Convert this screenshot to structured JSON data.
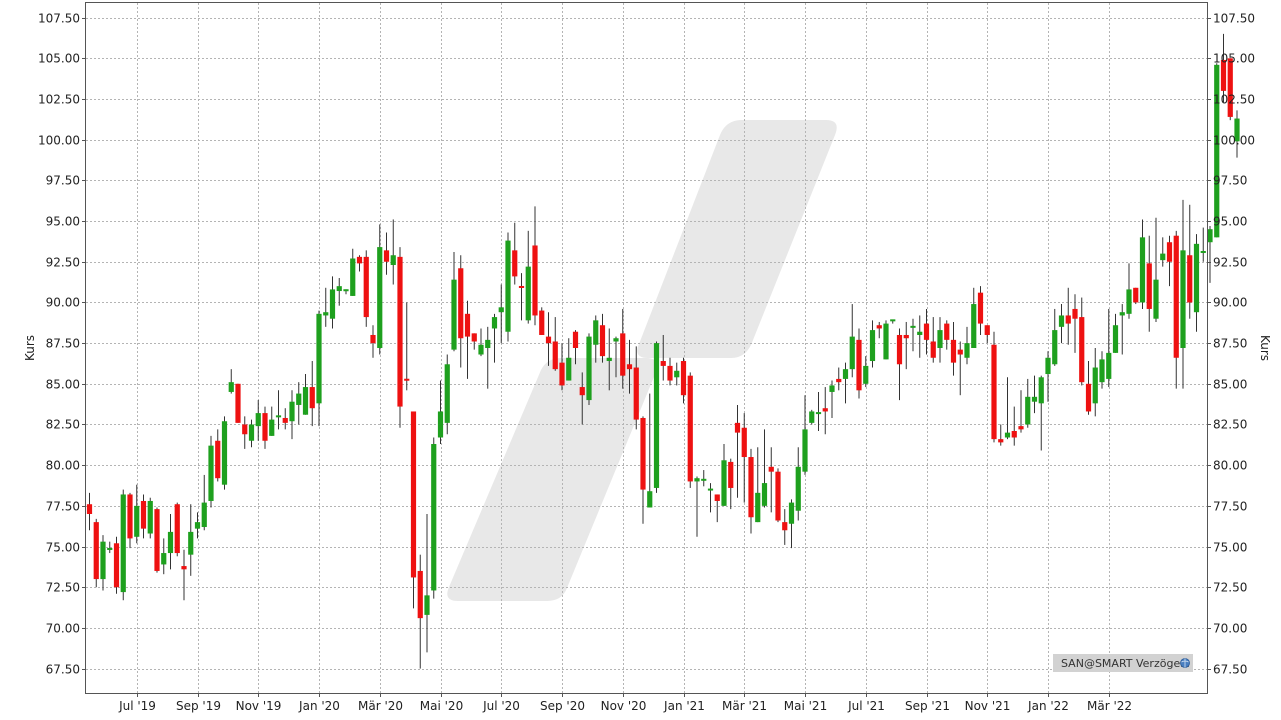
{
  "source_badge": {
    "label": "SAN@SMART Verzögert",
    "icon": "globe-icon"
  },
  "chart_data": {
    "type": "candlestick",
    "title": "",
    "ylabel_left": "Kurs",
    "ylabel_right": "Kurs",
    "ylim": [
      66.0,
      108.4
    ],
    "y_ticks": [
      "67.50",
      "70.00",
      "72.50",
      "75.00",
      "77.50",
      "80.00",
      "82.50",
      "85.00",
      "87.50",
      "90.00",
      "92.50",
      "95.00",
      "97.50",
      "100.00",
      "102.50",
      "105.00",
      "107.50"
    ],
    "x_ticks": [
      {
        "label": "Jul '19",
        "week": 7
      },
      {
        "label": "Sep '19",
        "week": 16
      },
      {
        "label": "Nov '19",
        "week": 25
      },
      {
        "label": "Jan '20",
        "week": 34
      },
      {
        "label": "Mär '20",
        "week": 43
      },
      {
        "label": "Mai '20",
        "week": 52
      },
      {
        "label": "Jul '20",
        "week": 61
      },
      {
        "label": "Sep '20",
        "week": 70
      },
      {
        "label": "Nov '20",
        "week": 79
      },
      {
        "label": "Jan '21",
        "week": 88
      },
      {
        "label": "Mär '21",
        "week": 97
      },
      {
        "label": "Mai '21",
        "week": 106
      },
      {
        "label": "Jul '21",
        "week": 115
      },
      {
        "label": "Sep '21",
        "week": 124
      },
      {
        "label": "Nov '21",
        "week": 133
      },
      {
        "label": "Jan '22",
        "week": 142
      },
      {
        "label": "Mär '22",
        "week": 151
      }
    ],
    "grid": true,
    "colors": {
      "up": "#1ea01e",
      "down": "#ee1111",
      "wick": "#333333",
      "grid": "#b4b4b4",
      "watermark": "#e8e8e8"
    },
    "candles": [
      [
        77.6,
        77.0,
        78.3,
        76.0
      ],
      [
        76.5,
        73.0,
        76.7,
        72.5
      ],
      [
        73.0,
        75.3,
        75.7,
        72.3
      ],
      [
        74.8,
        74.9,
        75.3,
        74.6
      ],
      [
        75.2,
        72.5,
        75.6,
        72.1
      ],
      [
        72.2,
        78.2,
        78.5,
        71.7
      ],
      [
        78.2,
        75.5,
        78.3,
        74.9
      ],
      [
        75.6,
        77.5,
        78.8,
        75.2
      ],
      [
        77.8,
        76.1,
        78.2,
        75.5
      ],
      [
        75.8,
        77.8,
        78.0,
        75.5
      ],
      [
        77.3,
        73.5,
        77.4,
        73.4
      ],
      [
        73.9,
        74.6,
        75.5,
        73.3
      ],
      [
        74.6,
        75.9,
        77.0,
        73.6
      ],
      [
        77.6,
        74.6,
        77.7,
        74.4
      ],
      [
        73.8,
        73.6,
        74.8,
        71.7
      ],
      [
        74.5,
        75.9,
        77.6,
        73.2
      ],
      [
        76.1,
        76.5,
        77.1,
        75.5
      ],
      [
        76.2,
        77.7,
        79.4,
        76.0
      ],
      [
        77.8,
        81.2,
        81.8,
        77.4
      ],
      [
        81.5,
        79.2,
        82.2,
        79.0
      ],
      [
        78.8,
        82.7,
        83.0,
        78.5
      ],
      [
        84.5,
        85.1,
        85.9,
        84.4
      ],
      [
        85.0,
        82.6,
        85.0,
        82.6
      ],
      [
        82.5,
        81.9,
        83.0,
        81.0
      ],
      [
        81.5,
        82.5,
        82.8,
        81.1
      ],
      [
        82.4,
        83.2,
        84.0,
        81.5
      ],
      [
        83.2,
        81.5,
        83.6,
        81.0
      ],
      [
        81.8,
        82.8,
        83.6,
        81.8
      ],
      [
        83.0,
        83.0,
        84.6,
        82.2
      ],
      [
        82.9,
        82.6,
        83.5,
        82.2
      ],
      [
        82.7,
        83.9,
        84.6,
        81.6
      ],
      [
        83.7,
        84.4,
        85.1,
        82.5
      ],
      [
        83.1,
        84.8,
        85.6,
        83.2
      ],
      [
        84.8,
        83.5,
        86.4,
        82.4
      ],
      [
        83.8,
        89.3,
        89.5,
        82.4
      ],
      [
        89.2,
        89.4,
        90.9,
        88.5
      ],
      [
        89.0,
        90.8,
        91.6,
        88.4
      ],
      [
        90.7,
        91.0,
        91.5,
        89.8
      ],
      [
        90.7,
        90.8,
        90.8,
        90.5
      ],
      [
        90.4,
        92.7,
        93.3,
        90.5
      ],
      [
        92.8,
        92.4,
        92.9,
        91.9
      ],
      [
        92.8,
        89.1,
        93.2,
        88.5
      ],
      [
        88.0,
        87.5,
        88.6,
        86.6
      ],
      [
        87.2,
        93.4,
        94.8,
        86.8
      ],
      [
        93.2,
        92.5,
        94.3,
        91.7
      ],
      [
        92.3,
        92.9,
        95.1,
        91.1
      ],
      [
        92.8,
        83.6,
        93.4,
        82.3
      ],
      [
        85.3,
        85.2,
        90.0,
        84.6
      ],
      [
        83.3,
        73.1,
        83.3,
        71.2
      ],
      [
        73.5,
        70.6,
        74.5,
        67.5
      ],
      [
        70.8,
        72.0,
        77.0,
        68.5
      ],
      [
        72.3,
        81.3,
        81.7,
        71.8
      ],
      [
        81.7,
        83.3,
        85.2,
        81.3
      ],
      [
        82.6,
        86.2,
        86.8,
        81.9
      ],
      [
        87.1,
        91.4,
        93.1,
        87.0
      ],
      [
        92.1,
        87.8,
        92.9,
        86.0
      ],
      [
        89.3,
        87.9,
        90.1,
        85.3
      ],
      [
        88.1,
        87.6,
        87.7,
        87.1
      ],
      [
        86.8,
        87.4,
        88.4,
        86.7
      ],
      [
        87.2,
        87.7,
        88.5,
        84.7
      ],
      [
        88.4,
        89.1,
        89.3,
        86.3
      ],
      [
        89.4,
        89.7,
        91.1,
        87.5
      ],
      [
        88.2,
        93.8,
        94.3,
        87.6
      ],
      [
        93.2,
        91.6,
        94.9,
        91.1
      ],
      [
        91.0,
        90.9,
        91.8,
        88.9
      ],
      [
        88.9,
        92.2,
        94.4,
        88.7
      ],
      [
        93.5,
        89.2,
        95.9,
        88.6
      ],
      [
        89.5,
        88.0,
        89.7,
        88.0
      ],
      [
        87.9,
        87.5,
        89.4,
        86.1
      ],
      [
        87.6,
        85.9,
        89.1,
        85.8
      ],
      [
        86.3,
        84.9,
        87.5,
        84.6
      ],
      [
        85.2,
        86.6,
        87.8,
        85.2
      ],
      [
        88.2,
        87.2,
        88.3,
        86.2
      ],
      [
        84.8,
        84.3,
        85.7,
        82.5
      ],
      [
        84.0,
        87.9,
        88.1,
        83.7
      ],
      [
        87.4,
        88.9,
        89.2,
        86.3
      ],
      [
        88.6,
        86.7,
        89.3,
        86.3
      ],
      [
        86.4,
        86.6,
        88.4,
        84.6
      ],
      [
        87.6,
        87.8,
        87.9,
        85.4
      ],
      [
        88.1,
        85.5,
        89.6,
        84.7
      ],
      [
        86.2,
        85.9,
        87.7,
        84.4
      ],
      [
        86.0,
        82.8,
        87.3,
        82.2
      ],
      [
        82.9,
        78.5,
        83.0,
        76.4
      ],
      [
        77.4,
        78.4,
        84.4,
        78.1
      ],
      [
        78.6,
        87.5,
        87.6,
        78.3
      ],
      [
        86.4,
        86.1,
        88.0,
        85.2
      ],
      [
        86.1,
        85.2,
        86.6,
        84.9
      ],
      [
        85.4,
        85.8,
        86.3,
        84.9
      ],
      [
        86.4,
        84.3,
        86.6,
        83.8
      ],
      [
        85.5,
        79.0,
        85.7,
        78.6
      ],
      [
        79.0,
        79.2,
        79.3,
        75.6
      ],
      [
        79.1,
        79.1,
        79.7,
        78.7
      ],
      [
        78.5,
        78.5,
        78.9,
        77.1
      ],
      [
        78.2,
        77.8,
        78.0,
        76.5
      ],
      [
        77.5,
        80.3,
        81.3,
        77.7
      ],
      [
        80.2,
        78.6,
        80.4,
        77.3
      ],
      [
        82.6,
        82.0,
        83.7,
        78.0
      ],
      [
        82.3,
        80.5,
        83.2,
        77.7
      ],
      [
        80.5,
        76.8,
        81.0,
        75.8
      ],
      [
        76.5,
        78.3,
        81.1,
        76.6
      ],
      [
        77.5,
        78.9,
        82.2,
        77.4
      ],
      [
        79.9,
        79.6,
        81.1,
        77.1
      ],
      [
        79.6,
        76.6,
        79.8,
        76.5
      ],
      [
        76.5,
        76.0,
        77.3,
        75.1
      ],
      [
        76.4,
        77.7,
        77.9,
        74.9
      ],
      [
        77.2,
        79.9,
        81.1,
        76.6
      ],
      [
        79.6,
        82.2,
        84.3,
        79.4
      ],
      [
        82.6,
        83.3,
        83.4,
        82.5
      ],
      [
        83.2,
        83.2,
        84.5,
        82.1
      ],
      [
        83.5,
        83.3,
        84.8,
        81.9
      ],
      [
        84.5,
        84.9,
        85.2,
        82.9
      ],
      [
        85.3,
        85.1,
        86.0,
        84.6
      ],
      [
        85.3,
        85.9,
        86.3,
        83.8
      ],
      [
        85.9,
        87.9,
        89.9,
        85.4
      ],
      [
        87.7,
        84.6,
        88.4,
        84.1
      ],
      [
        85.0,
        86.1,
        86.7,
        84.8
      ],
      [
        86.4,
        88.3,
        88.9,
        86.0
      ],
      [
        88.6,
        88.4,
        88.8,
        87.8
      ],
      [
        86.5,
        88.7,
        88.9,
        86.7
      ],
      [
        88.9,
        88.9,
        88.8,
        88.7
      ],
      [
        88.0,
        86.2,
        88.4,
        84.0
      ],
      [
        88.0,
        87.8,
        88.8,
        85.9
      ],
      [
        88.5,
        88.5,
        89.0,
        87.0
      ],
      [
        88.0,
        88.2,
        89.2,
        86.6
      ],
      [
        88.7,
        87.7,
        89.6,
        86.8
      ],
      [
        87.6,
        86.6,
        89.1,
        86.3
      ],
      [
        87.2,
        88.3,
        89.1,
        86.3
      ],
      [
        88.7,
        87.7,
        88.9,
        87.1
      ],
      [
        87.7,
        86.3,
        88.8,
        85.5
      ],
      [
        87.1,
        86.8,
        87.6,
        84.3
      ],
      [
        86.6,
        87.5,
        88.5,
        86.2
      ],
      [
        87.2,
        89.9,
        90.9,
        87.3
      ],
      [
        90.6,
        88.7,
        91.0,
        88.0
      ],
      [
        88.6,
        88.0,
        88.6,
        87.5
      ],
      [
        87.4,
        81.6,
        88.2,
        81.4
      ],
      [
        81.6,
        81.4,
        82.5,
        81.2
      ],
      [
        81.7,
        82.0,
        85.4,
        81.6
      ],
      [
        82.1,
        81.7,
        83.6,
        81.2
      ],
      [
        82.4,
        82.2,
        84.6,
        82.0
      ],
      [
        82.5,
        84.2,
        85.3,
        82.3
      ],
      [
        83.9,
        84.2,
        85.5,
        83.2
      ],
      [
        83.8,
        85.4,
        85.5,
        80.9
      ],
      [
        85.6,
        86.6,
        87.0,
        83.9
      ],
      [
        86.2,
        88.3,
        89.6,
        86.1
      ],
      [
        88.5,
        89.2,
        89.9,
        87.5
      ],
      [
        89.2,
        88.7,
        90.9,
        87.4
      ],
      [
        89.6,
        89.0,
        90.5,
        86.9
      ],
      [
        89.1,
        85.1,
        90.3,
        84.9
      ],
      [
        85.0,
        83.3,
        86.4,
        83.1
      ],
      [
        83.8,
        86.0,
        87.2,
        83.0
      ],
      [
        85.1,
        86.5,
        87.0,
        84.7
      ],
      [
        85.3,
        86.9,
        89.6,
        84.8
      ],
      [
        86.9,
        88.6,
        89.3,
        87.3
      ],
      [
        89.2,
        89.4,
        89.9,
        86.8
      ],
      [
        89.3,
        90.8,
        92.4,
        89.0
      ],
      [
        90.9,
        90.0,
        90.8,
        89.9
      ],
      [
        90.0,
        94.0,
        95.1,
        89.6
      ],
      [
        92.4,
        89.6,
        94.1,
        88.2
      ],
      [
        89.0,
        91.4,
        95.2,
        88.8
      ],
      [
        92.6,
        93.0,
        94.0,
        92.2
      ],
      [
        93.7,
        92.5,
        94.1,
        91.0
      ],
      [
        94.1,
        86.6,
        94.4,
        84.7
      ],
      [
        87.2,
        93.2,
        96.3,
        84.7
      ],
      [
        92.9,
        90.0,
        96.0,
        89.0
      ],
      [
        89.4,
        93.6,
        94.2,
        88.2
      ],
      [
        93.1,
        93.1,
        94.6,
        92.5
      ],
      [
        93.7,
        94.5,
        94.7,
        91.2
      ],
      [
        94.0,
        104.6,
        104.7,
        94.1
      ],
      [
        104.9,
        103.0,
        106.5,
        102.3
      ],
      [
        105.0,
        101.4,
        105.0,
        101.2
      ],
      [
        99.9,
        101.3,
        101.8,
        98.9
      ]
    ]
  }
}
